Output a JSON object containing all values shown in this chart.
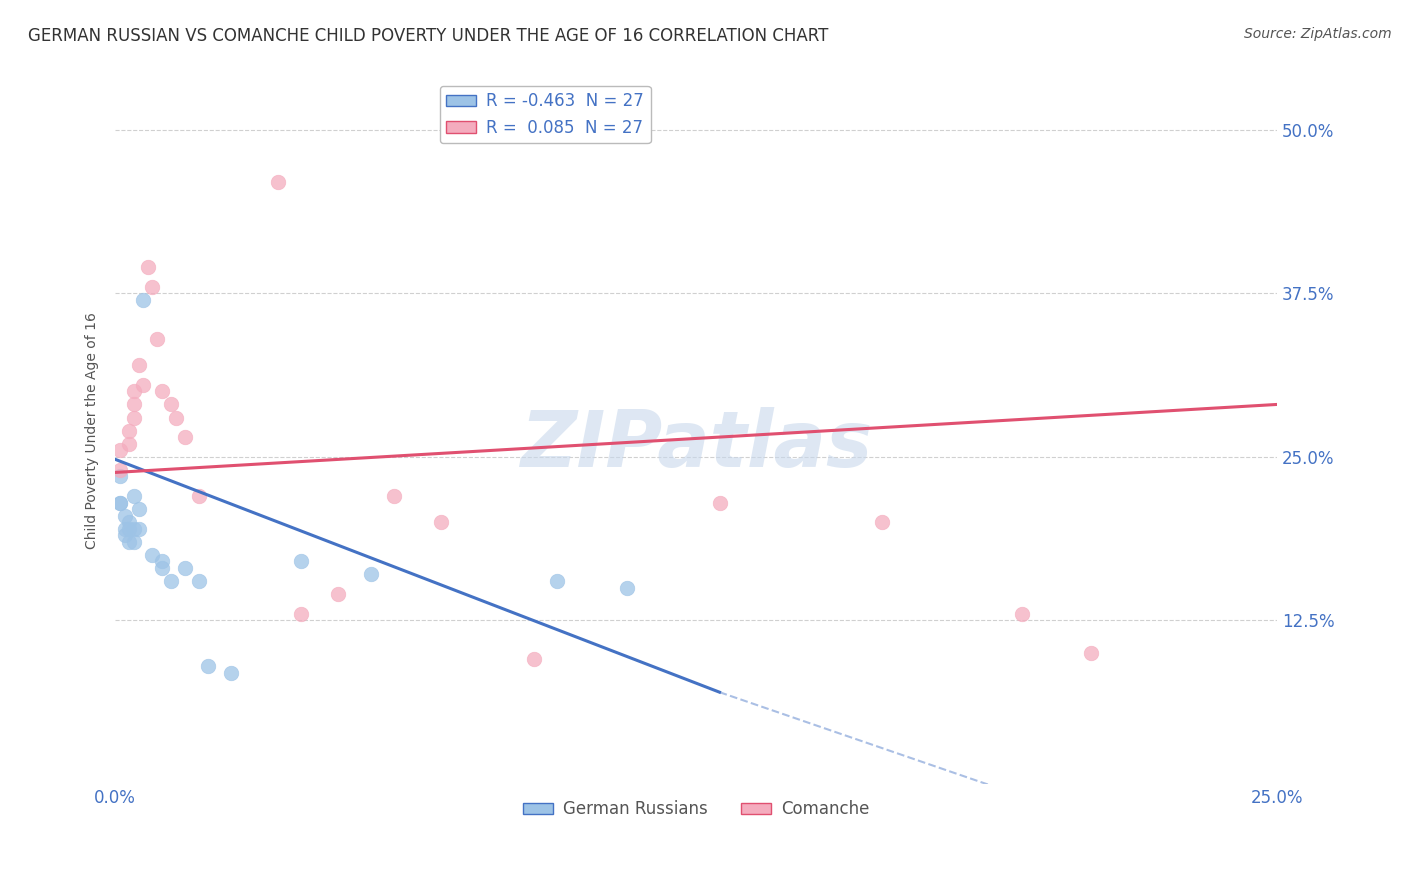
{
  "title": "GERMAN RUSSIAN VS COMANCHE CHILD POVERTY UNDER THE AGE OF 16 CORRELATION CHART",
  "source": "Source: ZipAtlas.com",
  "ylabel_label": "Child Poverty Under the Age of 16",
  "xlim": [
    0.0,
    0.25
  ],
  "ylim": [
    0.0,
    0.54
  ],
  "y_ticks": [
    0.125,
    0.25,
    0.375,
    0.5
  ],
  "y_tick_labels": [
    "12.5%",
    "25.0%",
    "37.5%",
    "50.0%"
  ],
  "x_ticks": [
    0.0,
    0.25
  ],
  "x_tick_labels": [
    "0.0%",
    "25.0%"
  ],
  "german_russian_points": [
    [
      0.001,
      0.235
    ],
    [
      0.001,
      0.215
    ],
    [
      0.001,
      0.215
    ],
    [
      0.002,
      0.205
    ],
    [
      0.002,
      0.195
    ],
    [
      0.002,
      0.19
    ],
    [
      0.003,
      0.2
    ],
    [
      0.003,
      0.195
    ],
    [
      0.003,
      0.185
    ],
    [
      0.004,
      0.22
    ],
    [
      0.004,
      0.195
    ],
    [
      0.004,
      0.185
    ],
    [
      0.005,
      0.21
    ],
    [
      0.005,
      0.195
    ],
    [
      0.006,
      0.37
    ],
    [
      0.008,
      0.175
    ],
    [
      0.01,
      0.17
    ],
    [
      0.01,
      0.165
    ],
    [
      0.012,
      0.155
    ],
    [
      0.015,
      0.165
    ],
    [
      0.018,
      0.155
    ],
    [
      0.02,
      0.09
    ],
    [
      0.025,
      0.085
    ],
    [
      0.04,
      0.17
    ],
    [
      0.055,
      0.16
    ],
    [
      0.095,
      0.155
    ],
    [
      0.11,
      0.15
    ]
  ],
  "comanche_points": [
    [
      0.001,
      0.255
    ],
    [
      0.001,
      0.24
    ],
    [
      0.003,
      0.27
    ],
    [
      0.003,
      0.26
    ],
    [
      0.004,
      0.3
    ],
    [
      0.004,
      0.29
    ],
    [
      0.004,
      0.28
    ],
    [
      0.005,
      0.32
    ],
    [
      0.006,
      0.305
    ],
    [
      0.007,
      0.395
    ],
    [
      0.008,
      0.38
    ],
    [
      0.009,
      0.34
    ],
    [
      0.01,
      0.3
    ],
    [
      0.012,
      0.29
    ],
    [
      0.013,
      0.28
    ],
    [
      0.015,
      0.265
    ],
    [
      0.018,
      0.22
    ],
    [
      0.035,
      0.46
    ],
    [
      0.04,
      0.13
    ],
    [
      0.048,
      0.145
    ],
    [
      0.06,
      0.22
    ],
    [
      0.07,
      0.2
    ],
    [
      0.09,
      0.095
    ],
    [
      0.13,
      0.215
    ],
    [
      0.165,
      0.2
    ],
    [
      0.195,
      0.13
    ],
    [
      0.21,
      0.1
    ]
  ],
  "gr_line": {
    "x": [
      0.0,
      0.13
    ],
    "y": [
      0.248,
      0.07
    ]
  },
  "gr_line_dash": {
    "x": [
      0.13,
      0.22
    ],
    "y": [
      0.07,
      -0.04
    ]
  },
  "comanche_line": {
    "x": [
      0.0,
      0.25
    ],
    "y": [
      0.238,
      0.29
    ]
  },
  "gr_color": "#4472c4",
  "gr_marker_color": "#9dc3e6",
  "comanche_line_color": "#e05070",
  "comanche_marker_color": "#f4acbe",
  "legend1_face": "#9dc3e6",
  "legend1_edge": "#4472c4",
  "legend2_face": "#f4acbe",
  "legend2_edge": "#e05070",
  "watermark_text": "ZIPatlas",
  "watermark_color": "#c8d8ec",
  "title_fontsize": 12,
  "axis_label_fontsize": 10,
  "tick_fontsize": 12,
  "source_fontsize": 10,
  "background_color": "#ffffff",
  "grid_color": "#d0d0d0"
}
